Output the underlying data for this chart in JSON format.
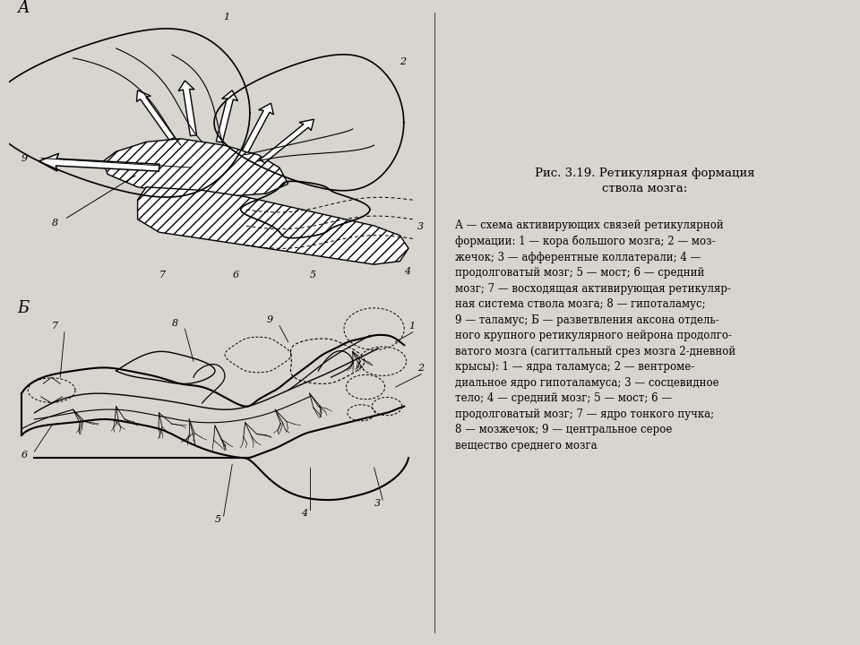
{
  "background_color": "#e8e6e0",
  "fig_width": 9.6,
  "fig_height": 7.2,
  "title_right": "Рис. 3.19. Ретикулярная формация\nствола мозга:",
  "caption_right": "А — схема активирующих связей ретикулярной\nформации: 1 — кора большого мозга; 2 — моз-\nжечок; 3 — афферентные коллатерали; 4 —\nпродолговатый мозг; 5 — мост; 6 — средний\nмозг; 7 — восходящая активирующая ретикуляр-\nная система ствола мозга; 8 — гипоталамус;\n9 — таламус; Б — разветвления аксона отдель-\nного крупного ретикулярного нейрона продолго-\nватого мозга (сагиттальный срез мозга 2-дневной\nкрысы): 1 — ядра таламуса; 2 — вентроме-\nдиальное ядро гипоталамуса; 3 — сосцевидное\nтело; 4 — средний мозг; 5 — мост; 6 —\nпродолговатый мозг; 7 — ядро тонкого пучка;\n8 — мозжечок; 9 — центральное серое\nвещество среднего мозга"
}
